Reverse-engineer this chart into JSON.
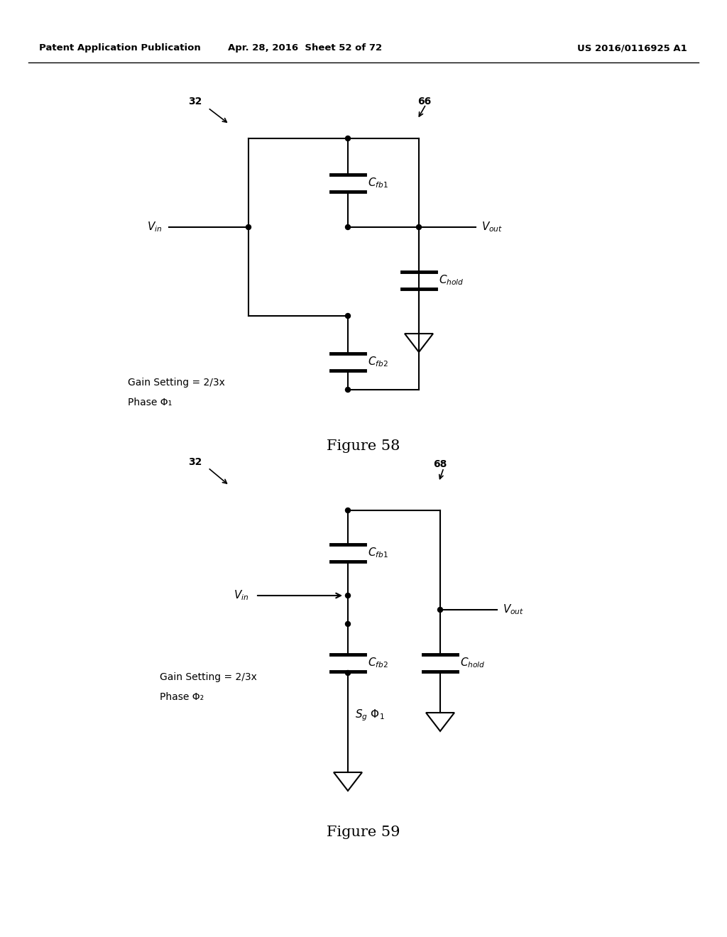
{
  "header_left": "Patent Application Publication",
  "header_mid": "Apr. 28, 2016  Sheet 52 of 72",
  "header_right": "US 2016/0116925 A1",
  "fig58_label": "Figure 58",
  "fig59_label": "Figure 59",
  "background": "#ffffff",
  "line_color": "#000000",
  "fig58": {
    "label32": "32",
    "label66": "66",
    "gain_text": "Gain Setting = 2/3x",
    "phase_text": "Phase Φ₁"
  },
  "fig59": {
    "label32": "32",
    "label68": "68",
    "gain_text": "Gain Setting = 2/3x",
    "phase_text": "Phase Φ₂",
    "sg_phi": "S₉ Φ₁"
  }
}
